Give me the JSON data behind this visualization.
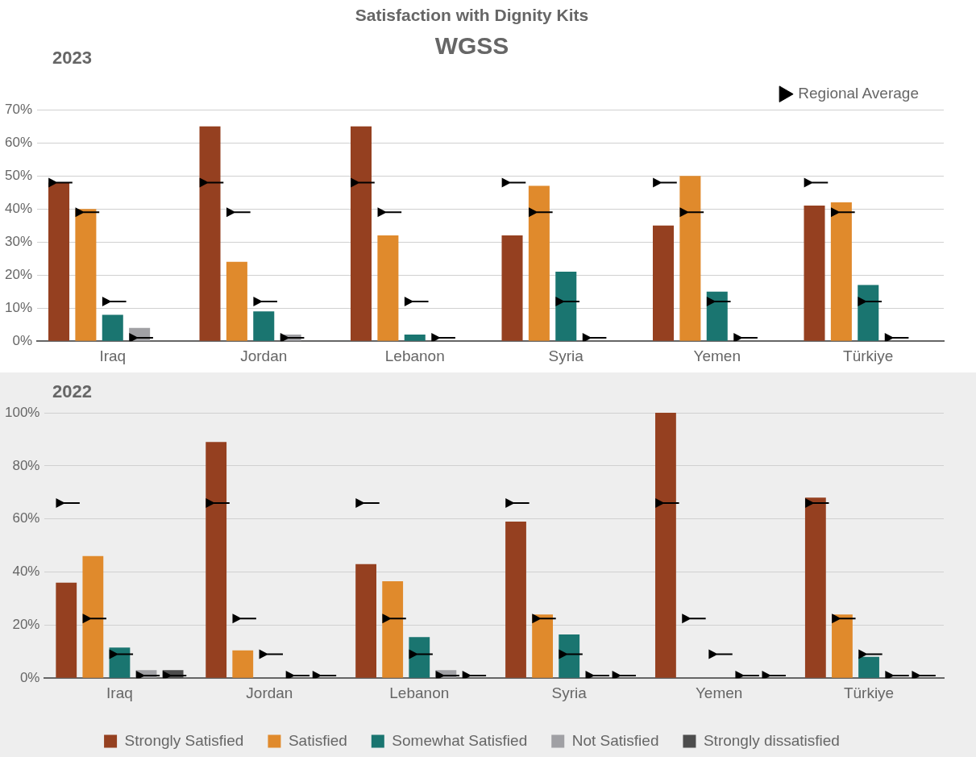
{
  "chart_data": [
    {
      "type": "bar",
      "title": "Satisfaction with Dignity Kits",
      "subtitle": "WGSS",
      "annotations": [
        "2023"
      ],
      "categories": [
        "Iraq",
        "Jordan",
        "Lebanon",
        "Syria",
        "Yemen",
        "Türkiye"
      ],
      "series": [
        {
          "color": "#954020",
          "values": [
            48,
            65,
            65,
            32,
            35,
            41
          ]
        },
        {
          "color": "#e08a2c",
          "values": [
            40,
            24,
            32,
            47,
            50,
            42
          ]
        },
        {
          "color": "#1a7570",
          "values": [
            8,
            9,
            2,
            21,
            15,
            17
          ]
        },
        {
          "color": "#a0a0a4",
          "values": [
            4,
            2,
            null,
            0,
            0,
            0
          ]
        },
        {
          "color": "#4d4d4d",
          "values": [
            0,
            0,
            0,
            0,
            0,
            0
          ]
        },
        {
          "name": "Regional Average",
          "type": "scatter",
          "color": "#000000",
          "x": [
            "Iraq",
            "Iraq",
            "Iraq",
            "Iraq",
            "Jordan",
            "Jordan",
            "Jordan",
            "Jordan",
            "Lebanon",
            "Lebanon",
            "Lebanon",
            "Lebanon",
            "Syria",
            "Syria",
            "Syria",
            "Syria",
            "Yemen",
            "Yemen",
            "Yemen",
            "Yemen",
            "Türkiye",
            "Türkiye",
            "Türkiye",
            "Türkiye"
          ],
          "values": [
            48,
            39,
            12,
            1,
            48,
            39,
            12,
            1,
            48,
            39,
            12,
            1,
            48,
            39,
            12,
            1,
            48,
            39,
            12,
            1,
            48,
            39,
            12,
            1
          ]
        }
      ],
      "ylim": [
        0,
        70
      ],
      "yticks": [
        {
          "value": 0,
          "label": "0%"
        },
        {
          "value": 10,
          "label": "10%"
        },
        {
          "value": 20,
          "label": "20%"
        },
        {
          "value": 30,
          "label": "30%"
        },
        {
          "value": 40,
          "label": "40%"
        },
        {
          "value": 50,
          "label": "50%"
        },
        {
          "value": 60,
          "label": "60%"
        },
        {
          "value": 70,
          "label": "70%"
        }
      ],
      "grid": "y",
      "legend": "top right",
      "marker": "triangle"
    },
    {
      "type": "bar",
      "annotations": [
        "2022"
      ],
      "categories": [
        "Iraq",
        "Jordan",
        "Lebanon",
        "Syria",
        "Yemen",
        "Türkiye"
      ],
      "series": [
        {
          "name": "Strongly Satisfied",
          "color": "#954020",
          "values": [
            36,
            89,
            43,
            59,
            100,
            68
          ]
        },
        {
          "name": "Satisfied",
          "color": "#e08a2c",
          "values": [
            46,
            10.5,
            36.5,
            24,
            0,
            24
          ]
        },
        {
          "name": "Somewhat Satisfied",
          "color": "#1a7570",
          "values": [
            11.5,
            0,
            15.5,
            16.5,
            0,
            8
          ]
        },
        {
          "name": "Not Satisfied",
          "color": "#a0a0a4",
          "values": [
            3,
            0,
            3,
            0,
            0,
            0
          ]
        },
        {
          "name": "Strongly dissatisfied",
          "color": "#4d4d4d",
          "values": [
            3,
            0,
            null,
            0,
            0,
            0
          ]
        },
        {
          "type": "scatter",
          "color": "#000000",
          "x": [
            "Iraq",
            "Iraq",
            "Iraq",
            "Iraq",
            "Iraq",
            "Jordan",
            "Jordan",
            "Jordan",
            "Jordan",
            "Jordan",
            "Lebanon",
            "Lebanon",
            "Lebanon",
            "Lebanon",
            "Lebanon",
            "Syria",
            "Syria",
            "Syria",
            "Syria",
            "Syria",
            "Yemen",
            "Yemen",
            "Yemen",
            "Yemen",
            "Yemen",
            "Türkiye",
            "Türkiye",
            "Türkiye",
            "Türkiye",
            "Türkiye"
          ],
          "values": [
            66,
            22.5,
            9,
            1,
            1,
            66,
            22.5,
            9,
            1,
            1,
            66,
            22.5,
            9,
            1,
            1,
            66,
            22.5,
            9,
            1,
            1,
            66,
            22.5,
            9,
            1,
            1,
            66,
            22.5,
            9,
            1,
            1
          ]
        }
      ],
      "ylim": [
        0,
        100
      ],
      "yticks": [
        {
          "value": 0,
          "label": "0%"
        },
        {
          "value": 20,
          "label": "20%"
        },
        {
          "value": 40,
          "label": "40%"
        },
        {
          "value": 60,
          "label": "60%"
        },
        {
          "value": 80,
          "label": "80%"
        },
        {
          "value": 100,
          "label": "100%"
        }
      ],
      "grid": "y",
      "legend": "bottom",
      "marker": "triangle"
    }
  ]
}
